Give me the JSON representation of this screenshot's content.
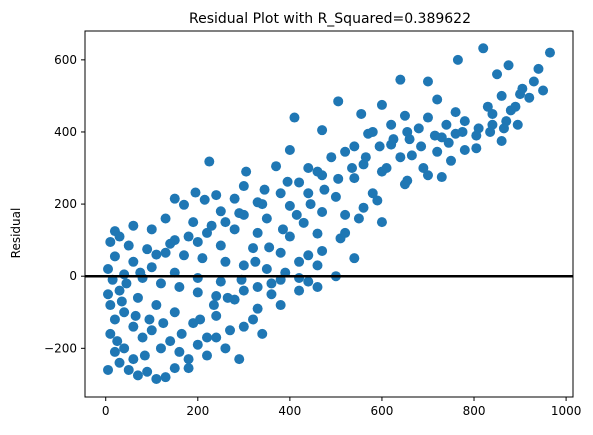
{
  "chart_data": {
    "type": "scatter",
    "title": "Residual Plot with R_Squared=0.389622",
    "xlabel": "",
    "ylabel": "Residual",
    "xlim": [
      -45,
      1015
    ],
    "ylim": [
      -335,
      680
    ],
    "x_ticks": [
      0,
      200,
      400,
      600,
      800,
      1000
    ],
    "x_tick_labels": [
      "0",
      "200",
      "400",
      "600",
      "800",
      "1000"
    ],
    "y_ticks": [
      -200,
      0,
      200,
      400,
      600
    ],
    "y_tick_labels": [
      "−200",
      "0",
      "200",
      "400",
      "600"
    ],
    "grid": false,
    "reference_line": {
      "y": 0,
      "color": "#000000"
    },
    "marker_color": "#1f77b4",
    "points": [
      [
        820,
        632
      ],
      [
        965,
        620
      ],
      [
        765,
        600
      ],
      [
        875,
        585
      ],
      [
        940,
        575
      ],
      [
        850,
        560
      ],
      [
        640,
        545
      ],
      [
        700,
        540
      ],
      [
        905,
        520
      ],
      [
        950,
        515
      ],
      [
        900,
        505
      ],
      [
        920,
        495
      ],
      [
        720,
        490
      ],
      [
        505,
        485
      ],
      [
        600,
        475
      ],
      [
        830,
        470
      ],
      [
        880,
        460
      ],
      [
        760,
        455
      ],
      [
        555,
        450
      ],
      [
        650,
        445
      ],
      [
        410,
        440
      ],
      [
        780,
        430
      ],
      [
        840,
        420
      ],
      [
        680,
        410
      ],
      [
        470,
        405
      ],
      [
        570,
        395
      ],
      [
        730,
        385
      ],
      [
        860,
        375
      ],
      [
        620,
        365
      ],
      [
        805,
        355
      ],
      [
        400,
        350
      ],
      [
        520,
        345
      ],
      [
        665,
        335
      ],
      [
        750,
        320
      ],
      [
        560,
        310
      ],
      [
        370,
        305
      ],
      [
        440,
        300
      ],
      [
        600,
        290
      ],
      [
        700,
        280
      ],
      [
        225,
        318
      ],
      [
        305,
        290
      ],
      [
        470,
        280
      ],
      [
        540,
        272
      ],
      [
        655,
        265
      ],
      [
        730,
        275
      ],
      [
        395,
        262
      ],
      [
        300,
        250
      ],
      [
        345,
        240
      ],
      [
        440,
        230
      ],
      [
        500,
        220
      ],
      [
        590,
        210
      ],
      [
        650,
        255
      ],
      [
        195,
        232
      ],
      [
        240,
        225
      ],
      [
        280,
        215
      ],
      [
        330,
        205
      ],
      [
        400,
        195
      ],
      [
        560,
        190
      ],
      [
        150,
        215
      ],
      [
        215,
        212
      ],
      [
        170,
        198
      ],
      [
        470,
        178
      ],
      [
        520,
        170
      ],
      [
        250,
        180
      ],
      [
        300,
        170
      ],
      [
        350,
        160
      ],
      [
        430,
        148
      ],
      [
        600,
        150
      ],
      [
        130,
        160
      ],
      [
        190,
        150
      ],
      [
        230,
        140
      ],
      [
        280,
        130
      ],
      [
        330,
        120
      ],
      [
        400,
        110
      ],
      [
        460,
        118
      ],
      [
        510,
        105
      ],
      [
        100,
        130
      ],
      [
        60,
        140
      ],
      [
        20,
        125
      ],
      [
        30,
        110
      ],
      [
        150,
        100
      ],
      [
        200,
        95
      ],
      [
        250,
        85
      ],
      [
        320,
        78
      ],
      [
        380,
        65
      ],
      [
        440,
        58
      ],
      [
        540,
        50
      ],
      [
        460,
        30
      ],
      [
        500,
        0
      ],
      [
        10,
        95
      ],
      [
        50,
        85
      ],
      [
        90,
        75
      ],
      [
        130,
        65
      ],
      [
        170,
        58
      ],
      [
        210,
        50
      ],
      [
        260,
        40
      ],
      [
        300,
        30
      ],
      [
        350,
        20
      ],
      [
        390,
        10
      ],
      [
        420,
        -5
      ],
      [
        440,
        -15
      ],
      [
        360,
        -20
      ],
      [
        330,
        -30
      ],
      [
        300,
        -40
      ],
      [
        250,
        -15
      ],
      [
        200,
        -5
      ],
      [
        150,
        10
      ],
      [
        100,
        25
      ],
      [
        60,
        40
      ],
      [
        20,
        55
      ],
      [
        5,
        20
      ],
      [
        40,
        5
      ],
      [
        80,
        -5
      ],
      [
        120,
        -20
      ],
      [
        160,
        -30
      ],
      [
        200,
        -45
      ],
      [
        240,
        -55
      ],
      [
        280,
        -65
      ],
      [
        240,
        -110
      ],
      [
        270,
        -150
      ],
      [
        220,
        -170
      ],
      [
        190,
        -130
      ],
      [
        150,
        -100
      ],
      [
        110,
        -80
      ],
      [
        70,
        -60
      ],
      [
        30,
        -40
      ],
      [
        10,
        -80
      ],
      [
        20,
        -120
      ],
      [
        40,
        -100
      ],
      [
        60,
        -140
      ],
      [
        80,
        -170
      ],
      [
        100,
        -150
      ],
      [
        120,
        -200
      ],
      [
        140,
        -180
      ],
      [
        160,
        -210
      ],
      [
        180,
        -230
      ],
      [
        200,
        -190
      ],
      [
        220,
        -220
      ],
      [
        240,
        -170
      ],
      [
        290,
        -230
      ],
      [
        10,
        -160
      ],
      [
        20,
        -210
      ],
      [
        30,
        -240
      ],
      [
        50,
        -260
      ],
      [
        70,
        -275
      ],
      [
        90,
        -265
      ],
      [
        110,
        -285
      ],
      [
        130,
        -280
      ],
      [
        150,
        -255
      ],
      [
        60,
        -230
      ],
      [
        40,
        -200
      ],
      [
        85,
        -220
      ],
      [
        5,
        -260
      ],
      [
        25,
        -180
      ],
      [
        180,
        -255
      ],
      [
        260,
        -200
      ],
      [
        320,
        -120
      ],
      [
        380,
        -80
      ],
      [
        340,
        -160
      ],
      [
        300,
        -140
      ],
      [
        330,
        -90
      ],
      [
        360,
        -50
      ],
      [
        420,
        -40
      ],
      [
        380,
        -10
      ],
      [
        460,
        -30
      ],
      [
        420,
        40
      ],
      [
        470,
        70
      ],
      [
        520,
        120
      ],
      [
        550,
        160
      ],
      [
        580,
        230
      ],
      [
        610,
        300
      ],
      [
        640,
        330
      ],
      [
        660,
        380
      ],
      [
        690,
        300
      ],
      [
        720,
        345
      ],
      [
        760,
        395
      ],
      [
        780,
        350
      ],
      [
        810,
        410
      ],
      [
        840,
        450
      ],
      [
        870,
        430
      ],
      [
        890,
        470
      ],
      [
        930,
        540
      ],
      [
        860,
        500
      ],
      [
        700,
        440
      ],
      [
        740,
        420
      ],
      [
        620,
        420
      ],
      [
        580,
        400
      ],
      [
        540,
        360
      ],
      [
        490,
        330
      ],
      [
        460,
        290
      ],
      [
        420,
        260
      ],
      [
        380,
        230
      ],
      [
        340,
        200
      ],
      [
        290,
        175
      ],
      [
        260,
        150
      ],
      [
        220,
        120
      ],
      [
        180,
        110
      ],
      [
        140,
        90
      ],
      [
        110,
        60
      ],
      [
        75,
        10
      ],
      [
        45,
        -20
      ],
      [
        15,
        -10
      ],
      [
        5,
        -50
      ],
      [
        35,
        -70
      ],
      [
        65,
        -110
      ],
      [
        95,
        -120
      ],
      [
        125,
        -130
      ],
      [
        165,
        -160
      ],
      [
        205,
        -120
      ],
      [
        235,
        -80
      ],
      [
        265,
        -60
      ],
      [
        295,
        -10
      ],
      [
        325,
        40
      ],
      [
        355,
        80
      ],
      [
        385,
        130
      ],
      [
        415,
        170
      ],
      [
        445,
        200
      ],
      [
        475,
        240
      ],
      [
        505,
        270
      ],
      [
        535,
        300
      ],
      [
        565,
        330
      ],
      [
        595,
        360
      ],
      [
        625,
        380
      ],
      [
        655,
        400
      ],
      [
        685,
        360
      ],
      [
        715,
        390
      ],
      [
        745,
        370
      ],
      [
        775,
        400
      ],
      [
        805,
        390
      ],
      [
        835,
        400
      ],
      [
        865,
        410
      ],
      [
        895,
        420
      ]
    ]
  }
}
